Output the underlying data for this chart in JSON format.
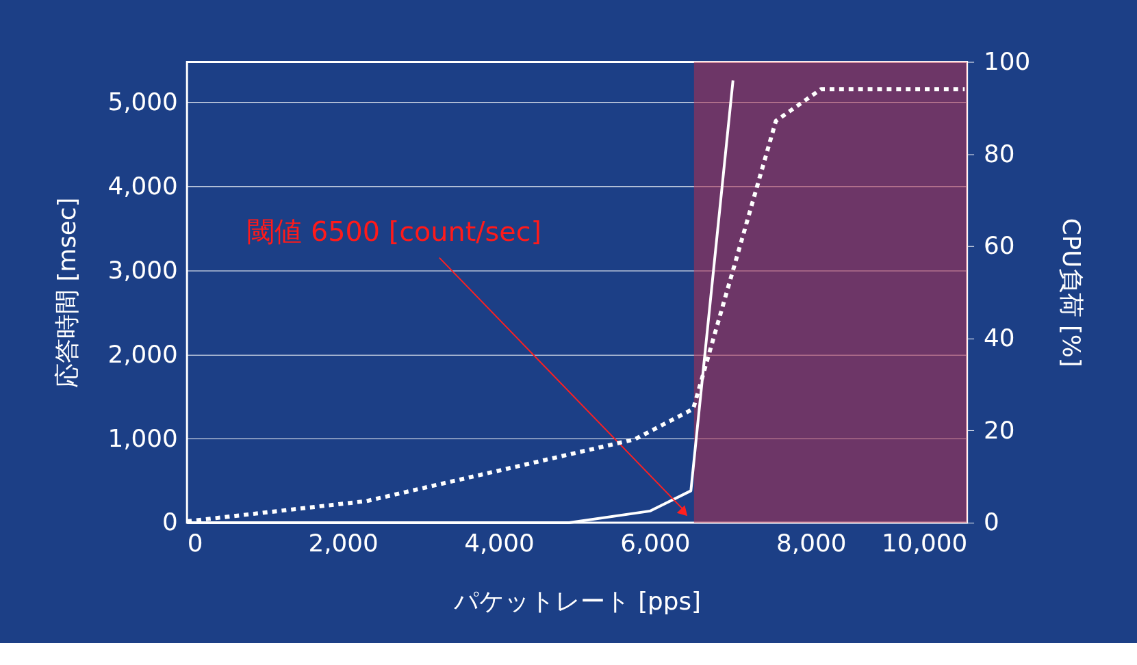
{
  "chart_data": {
    "type": "line",
    "xlabel": "パケットレート [pps]",
    "ylabel": "応答時間 [msec]",
    "y2label": "CPU負荷 [%]",
    "xlim": [
      0,
      10000
    ],
    "xticks": [
      0,
      {
        "value": 2000,
        "label": "2,000"
      },
      {
        "value": 4000,
        "label": "4,000"
      },
      {
        "value": 6000,
        "label": "6,000"
      },
      {
        "value": 8000,
        "label": "8,000"
      },
      {
        "value": 10000,
        "label": "10,000"
      }
    ],
    "ylim": [
      0,
      5480
    ],
    "yticks": [
      0,
      {
        "value": 1000,
        "label": "1,000"
      },
      {
        "value": 2000,
        "label": "2,000"
      },
      {
        "value": 3000,
        "label": "3,000"
      },
      {
        "value": 4000,
        "label": "4,000"
      },
      {
        "value": 5000,
        "label": "5,000"
      }
    ],
    "y2lim": [
      0,
      100
    ],
    "y2ticks": [
      0,
      20,
      40,
      60,
      80,
      100
    ],
    "grid": "y",
    "series": [
      {
        "color": "#ffffff",
        "line_style": "solid",
        "x": [
          0,
          4900,
          5940,
          6460,
          7000
        ],
        "values": [
          0,
          0,
          140,
          380,
          5260
        ]
      },
      {
        "color": "#ffffff",
        "line_style": "dotted",
        "axis": "y2",
        "x": [
          0,
          2300,
          5740,
          6490,
          7550,
          8130,
          9970
        ],
        "values": [
          0.3,
          4.7,
          18.1,
          24.7,
          87.2,
          94.1,
          94.1
        ]
      }
    ],
    "bands": [
      {
        "axis": "x",
        "from": 6500,
        "to": 10000,
        "color": "#b0304f"
      }
    ],
    "annotations": [
      "閾値 6500 [count/sec]"
    ]
  }
}
